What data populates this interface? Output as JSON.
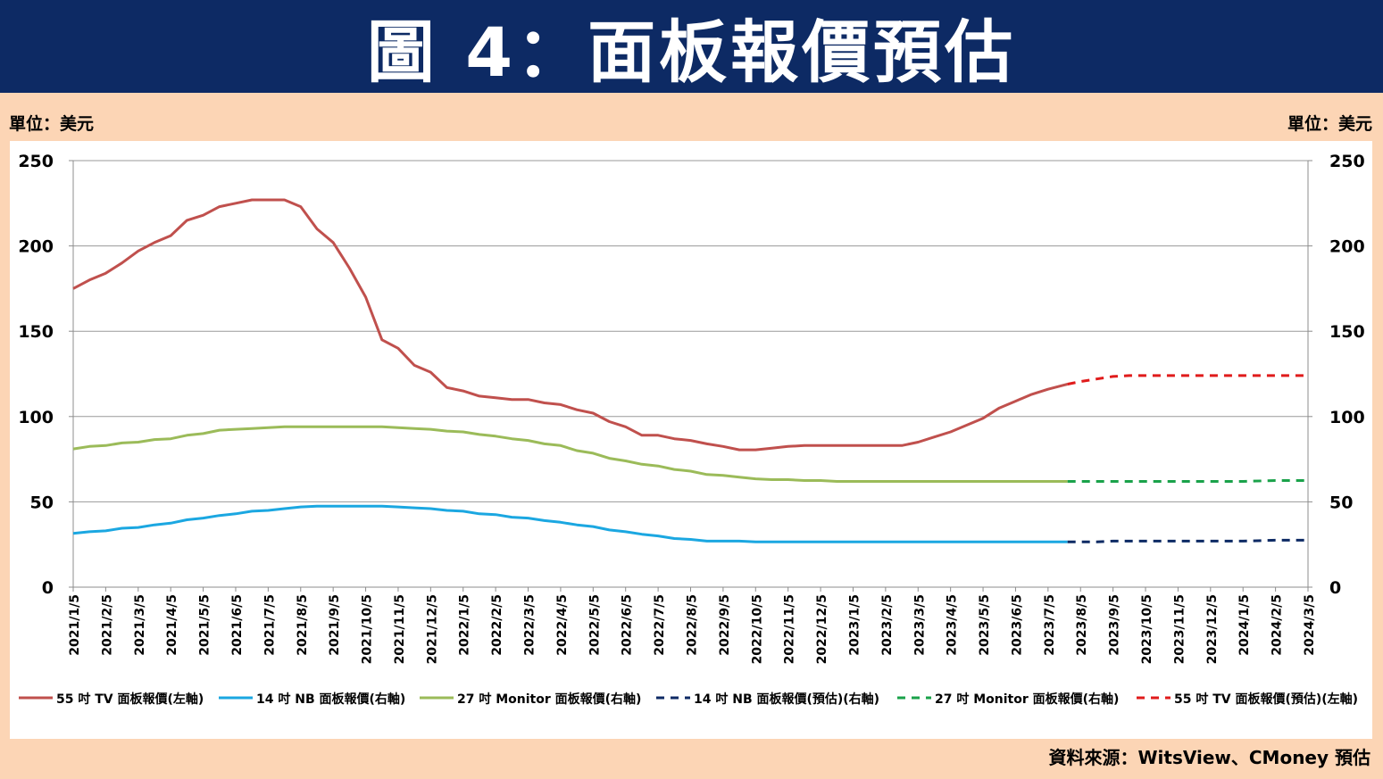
{
  "header": {
    "title": "圖 4：面板報價預估"
  },
  "units": {
    "left": "單位：美元",
    "right": "單位：美元"
  },
  "source": "資料來源：WitsView、CMoney 預估",
  "chart_data": {
    "type": "line",
    "title": "",
    "x": [
      "2021/1/5",
      "2021/2/5",
      "2021/3/5",
      "2021/4/5",
      "2021/5/5",
      "2021/6/5",
      "2021/7/5",
      "2021/8/5",
      "2021/9/5",
      "2021/10/5",
      "2021/11/5",
      "2021/12/5",
      "2022/1/5",
      "2022/2/5",
      "2022/3/5",
      "2022/4/5",
      "2022/5/5",
      "2022/6/5",
      "2022/7/5",
      "2022/8/5",
      "2022/9/5",
      "2022/10/5",
      "2022/11/5",
      "2022/12/5",
      "2023/1/5",
      "2023/2/5",
      "2023/3/5",
      "2023/4/5",
      "2023/5/5",
      "2023/6/5",
      "2023/7/5",
      "2023/8/5",
      "2023/9/5",
      "2023/10/5",
      "2023/11/5",
      "2023/12/5",
      "2024/1/5",
      "2024/2/5",
      "2024/3/5"
    ],
    "y_left": {
      "min": 0,
      "max": 250,
      "ticks": [
        0,
        50,
        100,
        150,
        200,
        250
      ]
    },
    "y_right": {
      "min": 0,
      "max": 250,
      "ticks": [
        0,
        50,
        100,
        150,
        200,
        250
      ]
    },
    "grid": true,
    "legend": "bottom",
    "series": [
      {
        "name": "55 吋 TV 面板報價(左軸)",
        "axis": "left",
        "color": "#c0504d",
        "dash": false,
        "points": [
          [
            0,
            175
          ],
          [
            0.5,
            180
          ],
          [
            1,
            184
          ],
          [
            1.5,
            190
          ],
          [
            2,
            197
          ],
          [
            2.5,
            202
          ],
          [
            3,
            206
          ],
          [
            3.5,
            215
          ],
          [
            4,
            218
          ],
          [
            4.5,
            223
          ],
          [
            5,
            225
          ],
          [
            5.5,
            227
          ],
          [
            6,
            227
          ],
          [
            6.5,
            227
          ],
          [
            7,
            223
          ],
          [
            7.5,
            210
          ],
          [
            8,
            202
          ],
          [
            8.5,
            187
          ],
          [
            9,
            170
          ],
          [
            9.5,
            145
          ],
          [
            10,
            140
          ],
          [
            10.5,
            130
          ],
          [
            11,
            126
          ],
          [
            11.5,
            117
          ],
          [
            12,
            115
          ],
          [
            12.5,
            112
          ],
          [
            13,
            111
          ],
          [
            13.5,
            110
          ],
          [
            14,
            110
          ],
          [
            14.5,
            108
          ],
          [
            15,
            107
          ],
          [
            15.5,
            104
          ],
          [
            16,
            102
          ],
          [
            16.5,
            97
          ],
          [
            17,
            94
          ],
          [
            17.5,
            89
          ],
          [
            18,
            89
          ],
          [
            18.5,
            87
          ],
          [
            19,
            86
          ],
          [
            19.5,
            84
          ],
          [
            20,
            82.5
          ],
          [
            20.5,
            80.5
          ],
          [
            21,
            80.5
          ],
          [
            21.5,
            81.5
          ],
          [
            22,
            82.5
          ],
          [
            22.5,
            83
          ],
          [
            23,
            83
          ],
          [
            24,
            83
          ],
          [
            25,
            83
          ],
          [
            25.5,
            83
          ],
          [
            26,
            85
          ],
          [
            26.5,
            88
          ],
          [
            27,
            91
          ],
          [
            27.5,
            95
          ],
          [
            28,
            99
          ],
          [
            28.5,
            105
          ],
          [
            29,
            109
          ],
          [
            29.5,
            113
          ],
          [
            30,
            116
          ],
          [
            30.5,
            118.5
          ],
          [
            30.6,
            119
          ]
        ]
      },
      {
        "name": "14 吋 NB 面板報價(右軸)",
        "axis": "right",
        "color": "#1ba7e1",
        "dash": false,
        "points": [
          [
            0,
            31.5
          ],
          [
            0.5,
            32.5
          ],
          [
            1,
            33
          ],
          [
            1.5,
            34.5
          ],
          [
            2,
            35
          ],
          [
            2.5,
            36.5
          ],
          [
            3,
            37.5
          ],
          [
            3.5,
            39.5
          ],
          [
            4,
            40.5
          ],
          [
            4.5,
            42
          ],
          [
            5,
            43
          ],
          [
            5.5,
            44.5
          ],
          [
            6,
            45
          ],
          [
            6.5,
            46
          ],
          [
            7,
            47
          ],
          [
            7.5,
            47.5
          ],
          [
            8,
            47.5
          ],
          [
            9,
            47.5
          ],
          [
            9.5,
            47.5
          ],
          [
            10,
            47
          ],
          [
            10.5,
            46.5
          ],
          [
            11,
            46
          ],
          [
            11.5,
            45
          ],
          [
            12,
            44.5
          ],
          [
            12.5,
            43
          ],
          [
            13,
            42.5
          ],
          [
            13.5,
            41
          ],
          [
            14,
            40.5
          ],
          [
            14.5,
            39
          ],
          [
            15,
            38
          ],
          [
            15.5,
            36.5
          ],
          [
            16,
            35.5
          ],
          [
            16.5,
            33.5
          ],
          [
            17,
            32.5
          ],
          [
            17.5,
            31
          ],
          [
            18,
            30
          ],
          [
            18.5,
            28.5
          ],
          [
            19,
            28
          ],
          [
            19.5,
            27
          ],
          [
            20,
            27
          ],
          [
            20.5,
            27
          ],
          [
            21,
            26.5
          ],
          [
            22,
            26.5
          ],
          [
            23,
            26.5
          ],
          [
            24,
            26.5
          ],
          [
            25,
            26.5
          ],
          [
            26,
            26.5
          ],
          [
            27,
            26.5
          ],
          [
            28,
            26.5
          ],
          [
            29,
            26.5
          ],
          [
            30,
            26.5
          ],
          [
            30.6,
            26.5
          ]
        ]
      },
      {
        "name": "27 吋 Monitor 面板報價(右軸)",
        "axis": "right",
        "color": "#9bbb59",
        "dash": false,
        "points": [
          [
            0,
            81
          ],
          [
            0.5,
            82.5
          ],
          [
            1,
            83
          ],
          [
            1.5,
            84.5
          ],
          [
            2,
            85
          ],
          [
            2.5,
            86.5
          ],
          [
            3,
            87
          ],
          [
            3.5,
            89
          ],
          [
            4,
            90
          ],
          [
            4.5,
            92
          ],
          [
            5,
            92.5
          ],
          [
            5.5,
            93
          ],
          [
            6,
            93.5
          ],
          [
            6.5,
            94
          ],
          [
            7,
            94
          ],
          [
            8,
            94
          ],
          [
            9,
            94
          ],
          [
            9.5,
            94
          ],
          [
            10,
            93.5
          ],
          [
            10.5,
            93
          ],
          [
            11,
            92.5
          ],
          [
            11.5,
            91.5
          ],
          [
            12,
            91
          ],
          [
            12.5,
            89.5
          ],
          [
            13,
            88.5
          ],
          [
            13.5,
            87
          ],
          [
            14,
            86
          ],
          [
            14.5,
            84
          ],
          [
            15,
            83
          ],
          [
            15.5,
            80
          ],
          [
            16,
            78.5
          ],
          [
            16.5,
            75.5
          ],
          [
            17,
            74
          ],
          [
            17.5,
            72
          ],
          [
            18,
            71
          ],
          [
            18.5,
            69
          ],
          [
            19,
            68
          ],
          [
            19.5,
            66
          ],
          [
            20,
            65.5
          ],
          [
            20.5,
            64.5
          ],
          [
            21,
            63.5
          ],
          [
            21.5,
            63
          ],
          [
            22,
            63
          ],
          [
            22.5,
            62.5
          ],
          [
            23,
            62.5
          ],
          [
            23.5,
            62
          ],
          [
            24,
            62
          ],
          [
            25,
            62
          ],
          [
            26,
            62
          ],
          [
            27,
            62
          ],
          [
            28,
            62
          ],
          [
            29,
            62
          ],
          [
            30,
            62
          ],
          [
            30.6,
            62
          ]
        ]
      },
      {
        "name": "14 吋 NB 面板報價(預估)(右軸)",
        "axis": "right",
        "color": "#0d2a64",
        "dash": true,
        "points": [
          [
            30.6,
            26.5
          ],
          [
            31,
            26.5
          ],
          [
            31.5,
            26.5
          ],
          [
            32,
            27
          ],
          [
            33,
            27
          ],
          [
            34,
            27
          ],
          [
            35,
            27
          ],
          [
            36,
            27
          ],
          [
            37,
            27.5
          ],
          [
            38,
            27.5
          ]
        ]
      },
      {
        "name": "27 吋 Monitor 面板報價(右軸)",
        "axis": "right",
        "color": "#1aa24a",
        "dash": true,
        "points": [
          [
            30.6,
            62
          ],
          [
            31,
            62
          ],
          [
            32,
            62
          ],
          [
            33,
            62
          ],
          [
            34,
            62
          ],
          [
            35,
            62
          ],
          [
            36,
            62
          ],
          [
            37,
            62.5
          ],
          [
            38,
            62.5
          ]
        ]
      },
      {
        "name": "55 吋 TV 面板報價(預估)(左軸)",
        "axis": "left",
        "color": "#e01b1b",
        "dash": true,
        "points": [
          [
            30.6,
            119
          ],
          [
            31,
            120.5
          ],
          [
            31.5,
            122
          ],
          [
            32,
            123.5
          ],
          [
            32.5,
            124
          ],
          [
            33,
            124
          ],
          [
            34,
            124
          ],
          [
            35,
            124
          ],
          [
            36,
            124
          ],
          [
            37,
            124
          ],
          [
            38,
            124
          ]
        ]
      }
    ]
  }
}
